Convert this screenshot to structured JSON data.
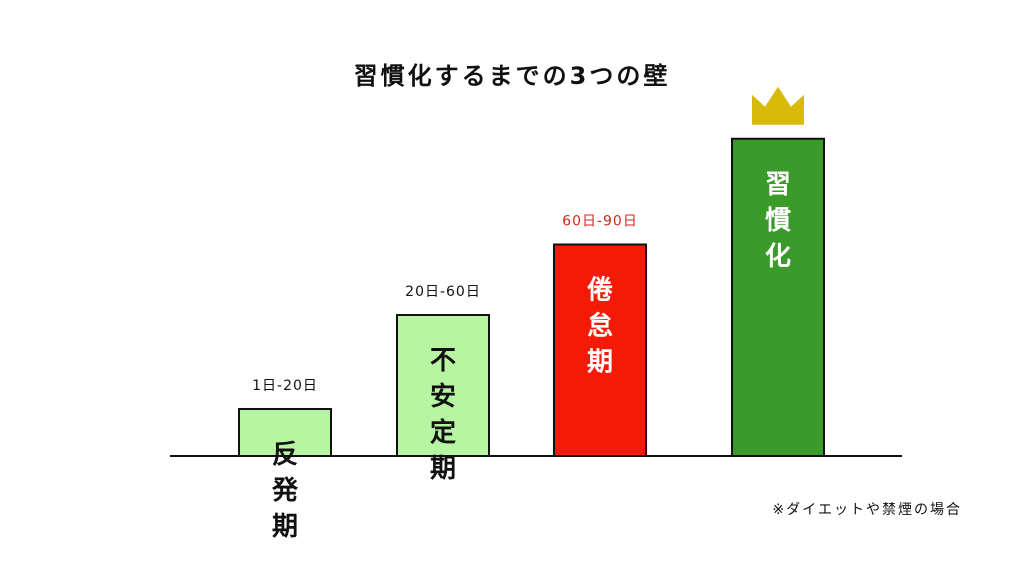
{
  "title": "習慣化するまでの3つの壁",
  "note": "※ダイエットや禁煙の場合",
  "chart_data": {
    "type": "bar",
    "title": "習慣化するまでの3つの壁",
    "categories": [
      "反発期",
      "不安定期",
      "倦怠期",
      "習慣化"
    ],
    "range_labels": [
      "1日-20日",
      "20日-60日",
      "60日-90日",
      ""
    ],
    "values": [
      20,
      60,
      90,
      135
    ],
    "ylim": [
      0,
      140
    ],
    "grid": false,
    "colors": {
      "bars": [
        "#b8f5a3",
        "#b8f5a3",
        "#f41a07",
        "#3a9a2a"
      ],
      "bar_text": [
        "#111111",
        "#111111",
        "#ffffff",
        "#ffffff"
      ],
      "range_labels": [
        "#111111",
        "#111111",
        "#d0271d",
        "#111111"
      ],
      "outline": "#111111",
      "crown": "#d9b909"
    },
    "crown_on_last_bar": true,
    "crown_icon": "crown-icon"
  }
}
